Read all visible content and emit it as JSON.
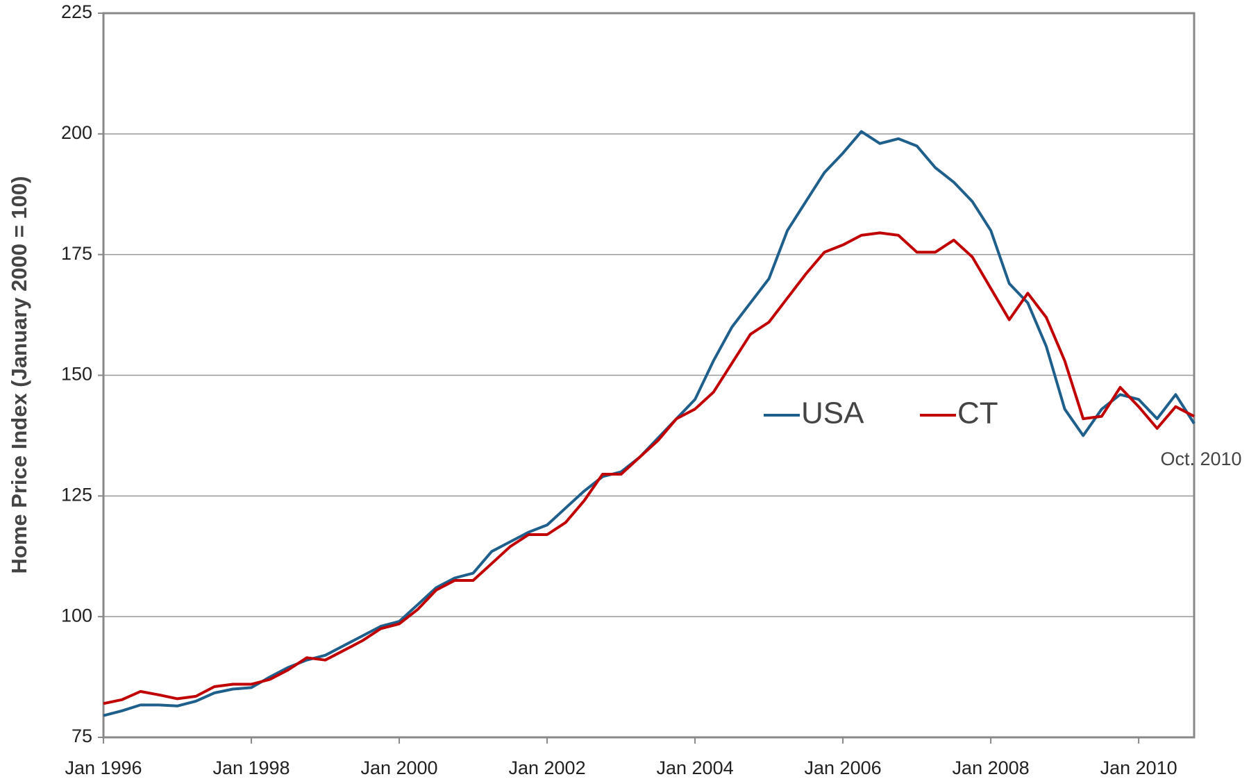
{
  "chart_data": {
    "type": "line",
    "y_label": "Home Price Index (January 2000 = 100)",
    "annotation": "Oct. 2010",
    "x": [
      "Jan 1996",
      "Apr 1996",
      "Jul 1996",
      "Oct 1996",
      "Jan 1997",
      "Apr 1997",
      "Jul 1997",
      "Oct 1997",
      "Jan 1998",
      "Apr 1998",
      "Jul 1998",
      "Oct 1998",
      "Jan 1999",
      "Apr 1999",
      "Jul 1999",
      "Oct 1999",
      "Jan 2000",
      "Apr 2000",
      "Jul 2000",
      "Oct 2000",
      "Jan 2001",
      "Apr 2001",
      "Jul 2001",
      "Oct 2001",
      "Jan 2002",
      "Apr 2002",
      "Jul 2002",
      "Oct 2002",
      "Jan 2003",
      "Apr 2003",
      "Jul 2003",
      "Oct 2003",
      "Jan 2004",
      "Apr 2004",
      "Jul 2004",
      "Oct 2004",
      "Jan 2005",
      "Apr 2005",
      "Jul 2005",
      "Oct 2005",
      "Jan 2006",
      "Apr 2006",
      "Jul 2006",
      "Oct 2006",
      "Jan 2007",
      "Apr 2007",
      "Jul 2007",
      "Oct 2007",
      "Jan 2008",
      "Apr 2008",
      "Jul 2008",
      "Oct 2008",
      "Jan 2009",
      "Apr 2009",
      "Jul 2009",
      "Oct 2009",
      "Jan 2010",
      "Apr 2010",
      "Jul 2010",
      "Oct 2010"
    ],
    "series": [
      {
        "name": "USA",
        "color": "#1f5f8b",
        "values": [
          79.5,
          80.5,
          81.7,
          81.7,
          81.5,
          82.5,
          84.2,
          85,
          85.3,
          87.5,
          89.5,
          91,
          92,
          94,
          96,
          98,
          99,
          102.5,
          106,
          108,
          109,
          113.5,
          115.5,
          117.5,
          119,
          122.5,
          126,
          129,
          130,
          133,
          137,
          141,
          145,
          153,
          160,
          165,
          170,
          180,
          186,
          192,
          196,
          200.5,
          198,
          199,
          197.5,
          193,
          190,
          186,
          180,
          169,
          165,
          156,
          143,
          137.5,
          143,
          146,
          145,
          141,
          146,
          140
        ]
      },
      {
        "name": "CT",
        "color": "#c00000",
        "values": [
          82,
          82.8,
          84.5,
          83.8,
          83,
          83.5,
          85.5,
          86,
          86,
          87,
          89,
          91.5,
          91,
          93,
          95,
          97.5,
          98.5,
          101.5,
          105.5,
          107.5,
          107.5,
          111,
          114.5,
          117,
          117,
          119.5,
          124,
          129.5,
          129.5,
          133,
          136.5,
          141,
          143,
          146.5,
          152.5,
          158.5,
          161,
          166,
          171,
          175.5,
          177,
          179,
          179.5,
          179,
          175.5,
          175.5,
          178,
          174.5,
          168,
          161.5,
          167,
          162,
          153,
          141,
          141.5,
          147.5,
          143.5,
          139,
          143.5,
          141.5
        ]
      }
    ],
    "xticks": [
      "Jan 1996",
      "Jan 1998",
      "Jan 2000",
      "Jan 2002",
      "Jan 2004",
      "Jan 2006",
      "Jan 2008",
      "Jan 2010"
    ],
    "ylim": [
      75,
      225
    ],
    "yticks": [
      75,
      100,
      125,
      150,
      175,
      200,
      225
    ],
    "grid": true
  }
}
